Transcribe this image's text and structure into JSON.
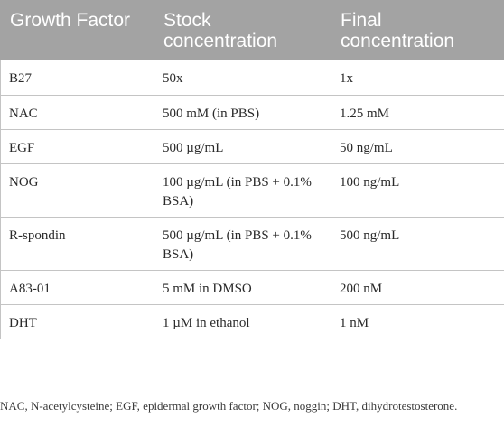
{
  "table": {
    "headers": [
      "Growth Factor",
      "Stock concentration",
      "Final concentration"
    ],
    "rows": [
      [
        "B27",
        "50x",
        "1x"
      ],
      [
        "NAC",
        "500 mM (in PBS)",
        "1.25 mM"
      ],
      [
        "EGF",
        "500 µg/mL",
        "50 ng/mL"
      ],
      [
        "NOG",
        "100 µg/mL (in PBS + 0.1% BSA)",
        "100 ng/mL"
      ],
      [
        "R-spondin",
        "500 µg/mL (in PBS + 0.1% BSA)",
        "500 ng/mL"
      ],
      [
        "A83-01",
        "5 mM in DMSO",
        "200 nM"
      ],
      [
        "DHT",
        "1 µM in ethanol",
        "1 nM"
      ]
    ]
  },
  "footnote": "NAC, N-acetylcysteine; EGF, epidermal growth factor; NOG, noggin; DHT, dihydrotestosterone."
}
